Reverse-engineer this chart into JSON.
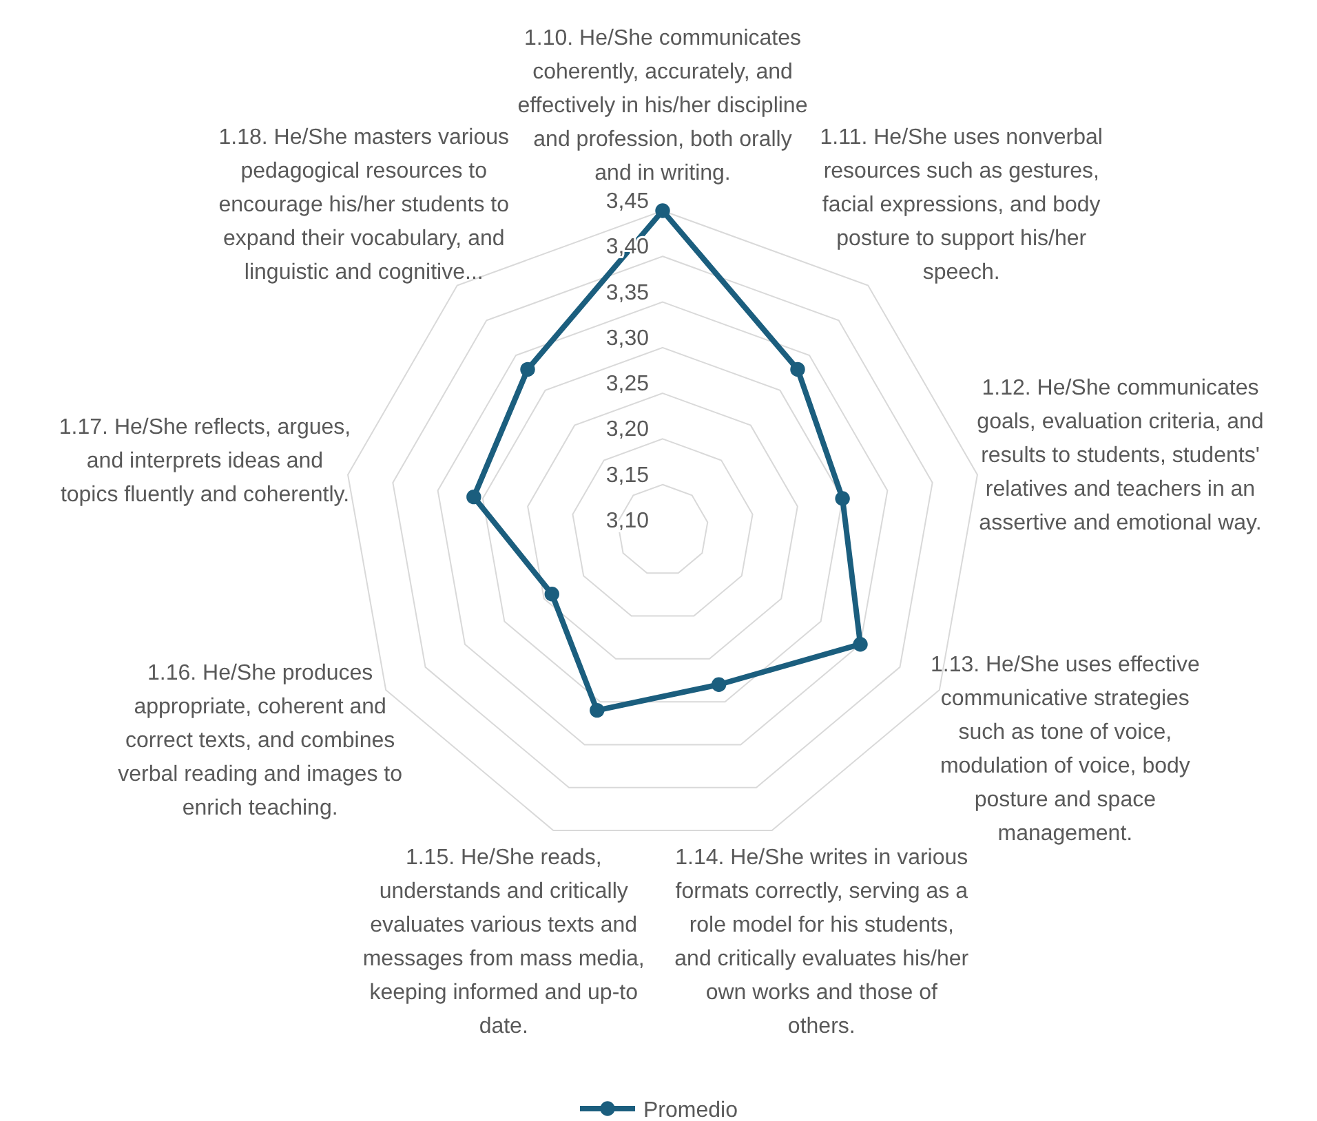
{
  "chart_data": {
    "type": "radar",
    "categories": [
      "1.10. He/She communicates coherently, accurately, and effectively in his/her discipline and profession, both orally and in writing.",
      "1.11. He/She uses nonverbal resources such as gestures, facial expressions, and body posture to support his/her speech.",
      "1.12. He/She communicates goals, evaluation criteria, and results to students, students' relatives and teachers in an assertive and emotional way.",
      "1.13. He/She uses effective communicative strategies such as tone of voice, modulation of voice, body posture and space management.",
      "1.14. He/She writes in various formats correctly, serving as a role model for his students, and critically evaluates his/her own works and those of others.",
      "1.15. He/She reads, understands and critically evaluates various texts and messages from mass media, keeping informed and up-to date.",
      "1.16. He/She produces appropriate, coherent and correct texts, and combines verbal reading and images to enrich teaching.",
      "1.17. He/She reflects, argues, and interprets ideas and topics fluently and coherently.",
      "1.18. He/She masters various pedagogical resources to encourage his/her students to expand their vocabulary, and linguistic and cognitive..."
    ],
    "series": [
      {
        "name": "Promedio",
        "color": "#1b5e7e",
        "values": [
          3.45,
          3.33,
          3.3,
          3.35,
          3.28,
          3.31,
          3.24,
          3.31,
          3.33
        ]
      }
    ],
    "ylim": [
      3.1,
      3.45
    ],
    "yticks": [
      {
        "value": 3.1,
        "label": "3,10"
      },
      {
        "value": 3.15,
        "label": "3,15"
      },
      {
        "value": 3.2,
        "label": "3,20"
      },
      {
        "value": 3.25,
        "label": "3,25"
      },
      {
        "value": 3.3,
        "label": "3,30"
      },
      {
        "value": 3.35,
        "label": "3,35"
      },
      {
        "value": 3.4,
        "label": "3,40"
      },
      {
        "value": 3.45,
        "label": "3,45"
      }
    ],
    "grid": true,
    "legend": "bottom",
    "marker": "circle"
  }
}
